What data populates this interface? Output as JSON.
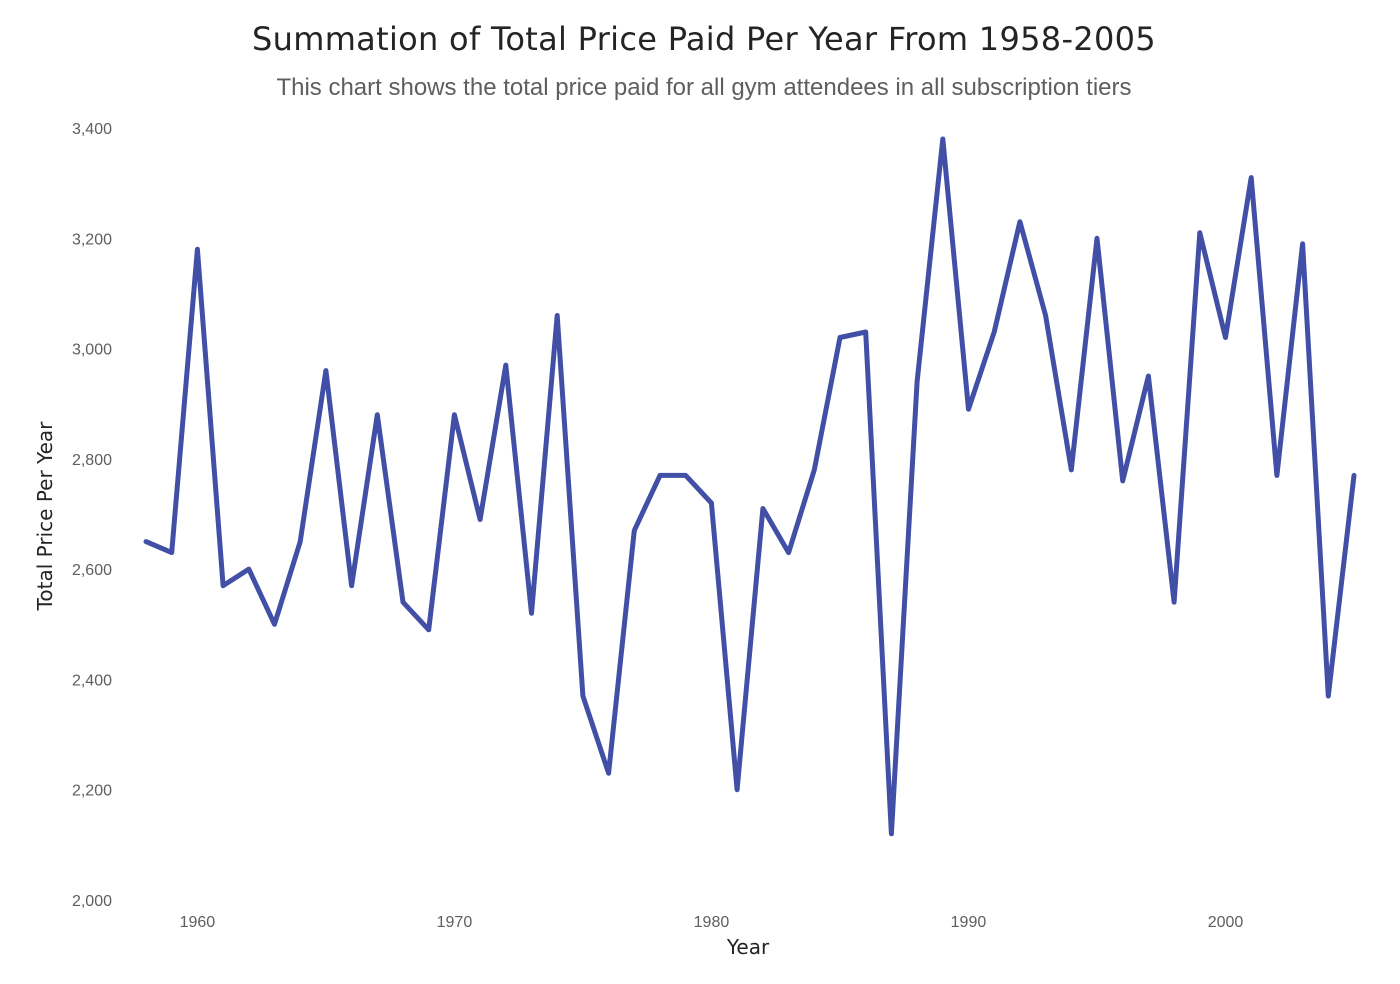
{
  "chart_data": {
    "type": "line",
    "title": "Summation of Total Price Paid Per Year From 1958-2005",
    "subtitle": "This chart shows the total price paid for all gym attendees in all subscription tiers",
    "xlabel": "Year",
    "ylabel": "Total Price Per Year",
    "xlim": [
      1958,
      2005
    ],
    "ylim": [
      2000,
      3400
    ],
    "x_ticks": [
      1960,
      1970,
      1980,
      1990,
      2000
    ],
    "y_ticks": [
      2000,
      2200,
      2400,
      2600,
      2800,
      3000,
      3200,
      3400
    ],
    "grid": false,
    "line_color": "#4150a6",
    "x": [
      1958,
      1959,
      1960,
      1961,
      1962,
      1963,
      1964,
      1965,
      1966,
      1967,
      1968,
      1969,
      1970,
      1971,
      1972,
      1973,
      1974,
      1975,
      1976,
      1977,
      1978,
      1979,
      1980,
      1981,
      1982,
      1983,
      1984,
      1985,
      1986,
      1987,
      1988,
      1989,
      1990,
      1991,
      1992,
      1993,
      1994,
      1995,
      1996,
      1997,
      1998,
      1999,
      2000,
      2001,
      2002,
      2003,
      2004,
      2005
    ],
    "values": [
      2650,
      2630,
      3180,
      2570,
      2600,
      2500,
      2650,
      2960,
      2570,
      2880,
      2540,
      2490,
      2880,
      2690,
      2970,
      2520,
      3060,
      2370,
      2230,
      2670,
      2770,
      2770,
      2720,
      2200,
      2710,
      2630,
      2780,
      3020,
      3030,
      2120,
      2940,
      3380,
      2890,
      3030,
      3230,
      3060,
      2780,
      3200,
      2760,
      2950,
      2540,
      3210,
      3020,
      3310,
      2770,
      3190,
      2370,
      2770
    ]
  }
}
